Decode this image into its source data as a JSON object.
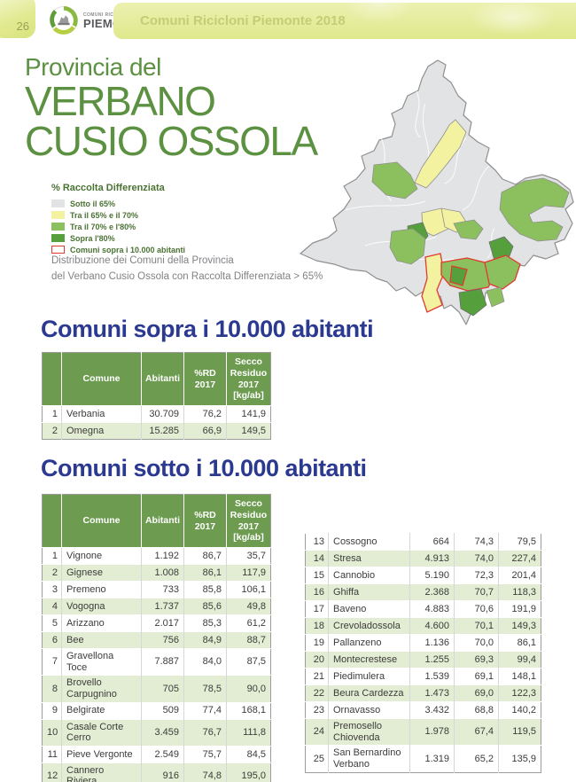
{
  "colors": {
    "header-text": "#c5cd74",
    "title-green": "#5d9142",
    "section-blue": "#2b3990",
    "legend-text": "#4a7233",
    "caption-gray": "#808285",
    "table-header-bg": "#6d9c50",
    "row-alt": "#e3edd3",
    "cell-text": "#3c3c3b",
    "map-base": "#e2e3e4",
    "map-yellow": "#f2f2a0",
    "map-green": "#8cbf5e",
    "map-dark-green": "#55a03c",
    "map-red": "#e03a2f"
  },
  "header": {
    "page_number": "26",
    "logo_top": "COMUNI RICICLONI",
    "logo_bottom": "PIEMONTE",
    "band_title": "Comuni Ricicloni Piemonte 2018"
  },
  "title": {
    "line1": "Provincia del",
    "line2": "VERBANO",
    "line3": "CUSIO OSSOLA"
  },
  "legend": {
    "title": "% Raccolta Differenziata",
    "items": [
      {
        "label": "Sotto il 65%",
        "color": "#e2e3e4"
      },
      {
        "label": "Tra il 65% e il 70%",
        "color": "#f2f2a0"
      },
      {
        "label": "Tra il 70% e l'80%",
        "color": "#8cbf5e"
      },
      {
        "label": "Sopra l'80%",
        "color": "#55a03c"
      },
      {
        "label": "Comuni sopra i 10.000 abitanti",
        "color": "#ffffff",
        "border": "#e03a2f"
      }
    ]
  },
  "caption": {
    "line1": "Distribuzione dei Comuni della Provincia",
    "line2": "del Verbano Cusio Ossola con Raccolta Differenziata > 65%"
  },
  "sections": {
    "sopra_title": "Comuni sopra i 10.000 abitanti",
    "sotto_title": "Comuni sotto i 10.000 abitanti"
  },
  "table_headers": [
    "",
    "Comune",
    "Abitanti",
    "%RD 2017",
    "Secco Residuo 2017 [kg/ab]"
  ],
  "tables": {
    "sopra_rows": [
      [
        "1",
        "Verbania",
        "30.709",
        "76,2",
        "141,9"
      ],
      [
        "2",
        "Omegna",
        "15.285",
        "66,9",
        "149,5"
      ]
    ],
    "sotto_left_rows": [
      [
        "1",
        "Vignone",
        "1.192",
        "86,7",
        "35,7"
      ],
      [
        "2",
        "Gignese",
        "1.008",
        "86,1",
        "117,9"
      ],
      [
        "3",
        "Premeno",
        "733",
        "85,8",
        "106,1"
      ],
      [
        "4",
        "Vogogna",
        "1.737",
        "85,6",
        "49,8"
      ],
      [
        "5",
        "Arizzano",
        "2.017",
        "85,3",
        "61,2"
      ],
      [
        "6",
        "Bee",
        "756",
        "84,9",
        "88,7"
      ],
      [
        "7",
        "Gravellona Toce",
        "7.887",
        "84,0",
        "87,5"
      ],
      [
        "8",
        "Brovello Carpugnino",
        "705",
        "78,5",
        "90,0"
      ],
      [
        "9",
        "Belgirate",
        "509",
        "77,4",
        "168,1"
      ],
      [
        "10",
        "Casale Corte Cerro",
        "3.459",
        "76,7",
        "111,8"
      ],
      [
        "11",
        "Pieve Vergonte",
        "2.549",
        "75,7",
        "84,5"
      ],
      [
        "12",
        "Cannero Riviera",
        "916",
        "74,8",
        "195,0"
      ]
    ],
    "sotto_right_rows": [
      [
        "13",
        "Cossogno",
        "664",
        "74,3",
        "79,5"
      ],
      [
        "14",
        "Stresa",
        "4.913",
        "74,0",
        "227,4"
      ],
      [
        "15",
        "Cannobio",
        "5.190",
        "72,3",
        "201,4"
      ],
      [
        "16",
        "Ghiffa",
        "2.368",
        "70,7",
        "118,3"
      ],
      [
        "17",
        "Baveno",
        "4.883",
        "70,6",
        "191,9"
      ],
      [
        "18",
        "Crevoladossola",
        "4.600",
        "70,1",
        "149,3"
      ],
      [
        "19",
        "Pallanzeno",
        "1.136",
        "70,0",
        "86,1"
      ],
      [
        "20",
        "Montecrestese",
        "1.255",
        "69,3",
        "99,4"
      ],
      [
        "21",
        "Piedimulera",
        "1.539",
        "69,1",
        "148,1"
      ],
      [
        "22",
        "Beura Cardezza",
        "1.473",
        "69,0",
        "122,3"
      ],
      [
        "23",
        "Ornavasso",
        "3.432",
        "68,8",
        "140,2"
      ],
      [
        "24",
        "Premosello Chiovenda",
        "1.978",
        "67,4",
        "119,5"
      ],
      [
        "25",
        "San Bernardino Verbano",
        "1.319",
        "65,2",
        "135,9"
      ]
    ]
  }
}
